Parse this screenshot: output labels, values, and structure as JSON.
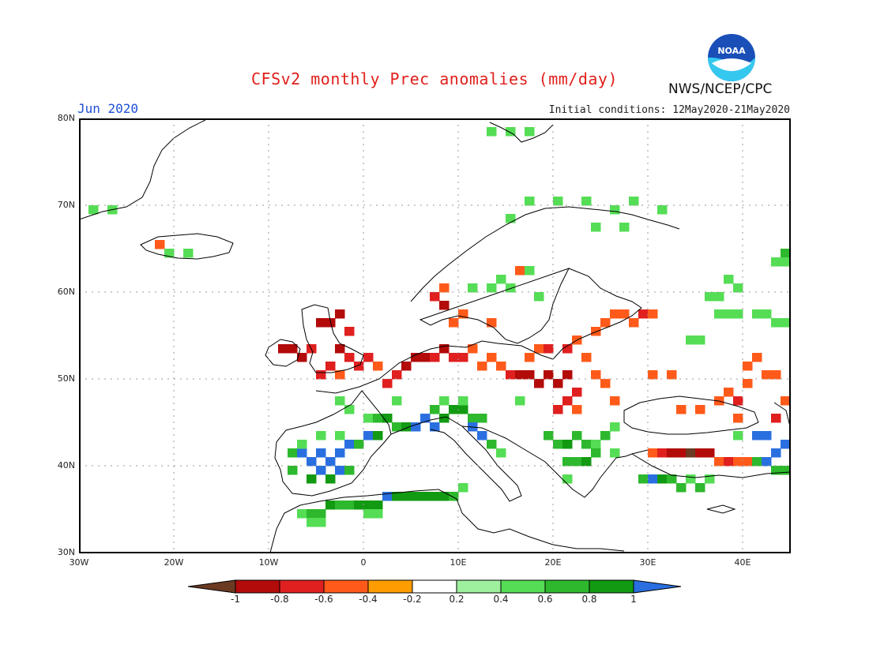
{
  "header": {
    "title": "CFSv2 monthly Prec anomalies (mm/day)",
    "period": "Jun 2020",
    "init": "Initial conditions: 12May2020-21May2020",
    "agency": "NWS/NCEP/CPC",
    "logo_text": "NOAA"
  },
  "axes": {
    "lat_labels": [
      "80N",
      "70N",
      "60N",
      "50N",
      "40N",
      "30N"
    ],
    "lon_labels": [
      "30W",
      "20W",
      "10W",
      "0",
      "10E",
      "20E",
      "30E",
      "40E"
    ],
    "lon_range": [
      -30,
      45
    ],
    "lat_range": [
      30,
      80
    ],
    "grid": "dotted"
  },
  "colorbar": {
    "labels": [
      "-1",
      "-0.8",
      "-0.6",
      "-0.4",
      "-0.2",
      "0.2",
      "0.4",
      "0.6",
      "0.8",
      "1"
    ],
    "colors": [
      "#6b3a22",
      "#b30a0a",
      "#e01f1f",
      "#ff5a1a",
      "#ff9d00",
      "#ffffff",
      "#9ef09e",
      "#55dd55",
      "#2db82d",
      "#129a12",
      "#2a6fe0"
    ]
  },
  "map": {
    "cell_deg": 1,
    "anomaly_cells": [
      {
        "lon": -9,
        "lat": 53,
        "v": -0.8
      },
      {
        "lon": -8,
        "lat": 53,
        "v": -0.8
      },
      {
        "lon": -7,
        "lat": 52,
        "v": -0.8
      },
      {
        "lon": -6,
        "lat": 53,
        "v": -0.6
      },
      {
        "lon": -5,
        "lat": 56,
        "v": -0.8
      },
      {
        "lon": -4,
        "lat": 56,
        "v": -0.8
      },
      {
        "lon": -3,
        "lat": 57,
        "v": -0.8
      },
      {
        "lon": -2,
        "lat": 55,
        "v": -0.6
      },
      {
        "lon": -3,
        "lat": 53,
        "v": -0.8
      },
      {
        "lon": -2,
        "lat": 52,
        "v": -0.6
      },
      {
        "lon": -1,
        "lat": 51,
        "v": -0.6
      },
      {
        "lon": 0,
        "lat": 52,
        "v": -0.6
      },
      {
        "lon": -4,
        "lat": 51,
        "v": -0.6
      },
      {
        "lon": -5,
        "lat": 50,
        "v": -0.6
      },
      {
        "lon": -3,
        "lat": 50,
        "v": -0.4
      },
      {
        "lon": 1,
        "lat": 51,
        "v": -0.4
      },
      {
        "lon": 2,
        "lat": 49,
        "v": -0.6
      },
      {
        "lon": 3,
        "lat": 50,
        "v": -0.6
      },
      {
        "lon": 4,
        "lat": 51,
        "v": -0.8
      },
      {
        "lon": 5,
        "lat": 52,
        "v": -0.8
      },
      {
        "lon": 6,
        "lat": 52,
        "v": -0.8
      },
      {
        "lon": 7,
        "lat": 52,
        "v": -0.6
      },
      {
        "lon": 8,
        "lat": 53,
        "v": -0.8
      },
      {
        "lon": 9,
        "lat": 52,
        "v": -0.6
      },
      {
        "lon": 10,
        "lat": 52,
        "v": -0.6
      },
      {
        "lon": 11,
        "lat": 53,
        "v": -0.4
      },
      {
        "lon": 12,
        "lat": 51,
        "v": -0.4
      },
      {
        "lon": 13,
        "lat": 52,
        "v": -0.4
      },
      {
        "lon": 14,
        "lat": 51,
        "v": -0.4
      },
      {
        "lon": 15,
        "lat": 50,
        "v": -0.6
      },
      {
        "lon": 16,
        "lat": 50,
        "v": -0.8
      },
      {
        "lon": 17,
        "lat": 50,
        "v": -0.8
      },
      {
        "lon": 18,
        "lat": 49,
        "v": -0.8
      },
      {
        "lon": 19,
        "lat": 50,
        "v": -0.8
      },
      {
        "lon": 20,
        "lat": 49,
        "v": -0.8
      },
      {
        "lon": 21,
        "lat": 50,
        "v": -0.8
      },
      {
        "lon": 22,
        "lat": 48,
        "v": -0.6
      },
      {
        "lon": 21,
        "lat": 47,
        "v": -0.6
      },
      {
        "lon": 20,
        "lat": 46,
        "v": -0.6
      },
      {
        "lon": 22,
        "lat": 46,
        "v": -0.4
      },
      {
        "lon": 17,
        "lat": 52,
        "v": -0.4
      },
      {
        "lon": 18,
        "lat": 53,
        "v": -0.4
      },
      {
        "lon": 19,
        "lat": 53,
        "v": -0.6
      },
      {
        "lon": 21,
        "lat": 53,
        "v": -0.6
      },
      {
        "lon": 23,
        "lat": 52,
        "v": -0.4
      },
      {
        "lon": 22,
        "lat": 54,
        "v": -0.4
      },
      {
        "lon": 24,
        "lat": 55,
        "v": -0.4
      },
      {
        "lon": 25,
        "lat": 56,
        "v": -0.4
      },
      {
        "lon": 26,
        "lat": 57,
        "v": -0.4
      },
      {
        "lon": 27,
        "lat": 57,
        "v": -0.4
      },
      {
        "lon": 28,
        "lat": 56,
        "v": -0.4
      },
      {
        "lon": 29,
        "lat": 57,
        "v": -0.6
      },
      {
        "lon": 30,
        "lat": 57,
        "v": -0.4
      },
      {
        "lon": 24,
        "lat": 50,
        "v": -0.4
      },
      {
        "lon": 25,
        "lat": 49,
        "v": -0.4
      },
      {
        "lon": 26,
        "lat": 47,
        "v": -0.4
      },
      {
        "lon": 30,
        "lat": 50,
        "v": -0.4
      },
      {
        "lon": 32,
        "lat": 50,
        "v": -0.4
      },
      {
        "lon": 33,
        "lat": 46,
        "v": -0.4
      },
      {
        "lon": 35,
        "lat": 46,
        "v": -0.4
      },
      {
        "lon": 37,
        "lat": 47,
        "v": -0.4
      },
      {
        "lon": 38,
        "lat": 48,
        "v": -0.4
      },
      {
        "lon": 39,
        "lat": 47,
        "v": -0.6
      },
      {
        "lon": 40,
        "lat": 49,
        "v": -0.4
      },
      {
        "lon": 40,
        "lat": 51,
        "v": -0.4
      },
      {
        "lon": 41,
        "lat": 52,
        "v": -0.4
      },
      {
        "lon": 42,
        "lat": 50,
        "v": -0.4
      },
      {
        "lon": 43,
        "lat": 50,
        "v": -0.4
      },
      {
        "lon": 44,
        "lat": 47,
        "v": -0.4
      },
      {
        "lon": 43,
        "lat": 45,
        "v": -0.6
      },
      {
        "lon": 39,
        "lat": 45,
        "v": -0.4
      },
      {
        "lon": 30,
        "lat": 41,
        "v": -0.4
      },
      {
        "lon": 31,
        "lat": 41,
        "v": -0.6
      },
      {
        "lon": 32,
        "lat": 41,
        "v": -0.8
      },
      {
        "lon": 33,
        "lat": 41,
        "v": -0.8
      },
      {
        "lon": 34,
        "lat": 41,
        "v": -1.0
      },
      {
        "lon": 35,
        "lat": 41,
        "v": -0.8
      },
      {
        "lon": 36,
        "lat": 41,
        "v": -0.8
      },
      {
        "lon": 37,
        "lat": 40,
        "v": -0.4
      },
      {
        "lon": 38,
        "lat": 40,
        "v": -0.6
      },
      {
        "lon": 39,
        "lat": 40,
        "v": -0.4
      },
      {
        "lon": 40,
        "lat": 40,
        "v": -0.4
      },
      {
        "lon": 7,
        "lat": 59,
        "v": -0.6
      },
      {
        "lon": 8,
        "lat": 58,
        "v": -0.8
      },
      {
        "lon": 9,
        "lat": 56,
        "v": -0.4
      },
      {
        "lon": 10,
        "lat": 57,
        "v": -0.4
      },
      {
        "lon": 8,
        "lat": 60,
        "v": -0.4
      },
      {
        "lon": 16,
        "lat": 62,
        "v": -0.4
      },
      {
        "lon": 13,
        "lat": 56,
        "v": -0.4
      },
      {
        "lon": -22,
        "lat": 65,
        "v": -0.4
      },
      {
        "lon": -8,
        "lat": 41,
        "v": 0.6
      },
      {
        "lon": -7,
        "lat": 41,
        "v": 1.0
      },
      {
        "lon": -6,
        "lat": 40,
        "v": 1.0
      },
      {
        "lon": -5,
        "lat": 41,
        "v": 1.0
      },
      {
        "lon": -4,
        "lat": 40,
        "v": 1.0
      },
      {
        "lon": -3,
        "lat": 41,
        "v": 1.0
      },
      {
        "lon": -2,
        "lat": 42,
        "v": 1.0
      },
      {
        "lon": -5,
        "lat": 39,
        "v": 1.0
      },
      {
        "lon": -3,
        "lat": 39,
        "v": 1.0
      },
      {
        "lon": -6,
        "lat": 38,
        "v": 0.8
      },
      {
        "lon": -4,
        "lat": 38,
        "v": 0.8
      },
      {
        "lon": -2,
        "lat": 39,
        "v": 0.6
      },
      {
        "lon": -8,
        "lat": 39,
        "v": 0.6
      },
      {
        "lon": -7,
        "lat": 42,
        "v": 0.4
      },
      {
        "lon": -5,
        "lat": 43,
        "v": 0.4
      },
      {
        "lon": -3,
        "lat": 43,
        "v": 0.4
      },
      {
        "lon": -1,
        "lat": 42,
        "v": 0.6
      },
      {
        "lon": 0,
        "lat": 43,
        "v": 1.0
      },
      {
        "lon": 1,
        "lat": 43,
        "v": 0.8
      },
      {
        "lon": 0,
        "lat": 45,
        "v": 0.4
      },
      {
        "lon": 1,
        "lat": 45,
        "v": 0.6
      },
      {
        "lon": 2,
        "lat": 45,
        "v": 0.8
      },
      {
        "lon": 3,
        "lat": 44,
        "v": 0.6
      },
      {
        "lon": 4,
        "lat": 44,
        "v": 0.8
      },
      {
        "lon": 5,
        "lat": 44,
        "v": 1.0
      },
      {
        "lon": 6,
        "lat": 45,
        "v": 1.0
      },
      {
        "lon": 7,
        "lat": 44,
        "v": 1.0
      },
      {
        "lon": 8,
        "lat": 45,
        "v": 0.8
      },
      {
        "lon": 9,
        "lat": 46,
        "v": 0.8
      },
      {
        "lon": 10,
        "lat": 46,
        "v": 0.8
      },
      {
        "lon": 11,
        "lat": 45,
        "v": 0.6
      },
      {
        "lon": 12,
        "lat": 45,
        "v": 0.6
      },
      {
        "lon": 7,
        "lat": 46,
        "v": 0.6
      },
      {
        "lon": 8,
        "lat": 47,
        "v": 0.4
      },
      {
        "lon": 11,
        "lat": 44,
        "v": 1.0
      },
      {
        "lon": 12,
        "lat": 43,
        "v": 1.0
      },
      {
        "lon": 13,
        "lat": 42,
        "v": 0.6
      },
      {
        "lon": 14,
        "lat": 41,
        "v": 0.4
      },
      {
        "lon": 3,
        "lat": 47,
        "v": 0.4
      },
      {
        "lon": -2,
        "lat": 46,
        "v": 0.4
      },
      {
        "lon": -3,
        "lat": 47,
        "v": 0.4
      },
      {
        "lon": -7,
        "lat": 34,
        "v": 0.4
      },
      {
        "lon": -6,
        "lat": 34,
        "v": 0.6
      },
      {
        "lon": -5,
        "lat": 34,
        "v": 0.6
      },
      {
        "lon": -4,
        "lat": 35,
        "v": 0.8
      },
      {
        "lon": -3,
        "lat": 35,
        "v": 0.6
      },
      {
        "lon": -2,
        "lat": 35,
        "v": 0.6
      },
      {
        "lon": -1,
        "lat": 35,
        "v": 0.8
      },
      {
        "lon": 0,
        "lat": 35,
        "v": 0.8
      },
      {
        "lon": 1,
        "lat": 35,
        "v": 0.8
      },
      {
        "lon": 2,
        "lat": 36,
        "v": 1.0
      },
      {
        "lon": 3,
        "lat": 36,
        "v": 0.8
      },
      {
        "lon": 4,
        "lat": 36,
        "v": 0.8
      },
      {
        "lon": 5,
        "lat": 36,
        "v": 0.8
      },
      {
        "lon": 6,
        "lat": 36,
        "v": 0.8
      },
      {
        "lon": 7,
        "lat": 36,
        "v": 0.8
      },
      {
        "lon": 8,
        "lat": 36,
        "v": 0.8
      },
      {
        "lon": 9,
        "lat": 36,
        "v": 0.6
      },
      {
        "lon": 10,
        "lat": 37,
        "v": 0.4
      },
      {
        "lon": 0,
        "lat": 34,
        "v": 0.4
      },
      {
        "lon": 1,
        "lat": 34,
        "v": 0.4
      },
      {
        "lon": -6,
        "lat": 33,
        "v": 0.4
      },
      {
        "lon": -5,
        "lat": 33,
        "v": 0.4
      },
      {
        "lon": 19,
        "lat": 43,
        "v": 0.6
      },
      {
        "lon": 20,
        "lat": 42,
        "v": 0.6
      },
      {
        "lon": 21,
        "lat": 42,
        "v": 0.8
      },
      {
        "lon": 22,
        "lat": 43,
        "v": 0.6
      },
      {
        "lon": 23,
        "lat": 42,
        "v": 0.6
      },
      {
        "lon": 24,
        "lat": 42,
        "v": 0.4
      },
      {
        "lon": 25,
        "lat": 43,
        "v": 0.6
      },
      {
        "lon": 21,
        "lat": 40,
        "v": 0.6
      },
      {
        "lon": 22,
        "lat": 40,
        "v": 0.6
      },
      {
        "lon": 23,
        "lat": 40,
        "v": 0.8
      },
      {
        "lon": 24,
        "lat": 41,
        "v": 0.6
      },
      {
        "lon": 26,
        "lat": 44,
        "v": 0.4
      },
      {
        "lon": 29,
        "lat": 38,
        "v": 0.6
      },
      {
        "lon": 30,
        "lat": 38,
        "v": 1.0
      },
      {
        "lon": 31,
        "lat": 38,
        "v": 0.8
      },
      {
        "lon": 32,
        "lat": 38,
        "v": 0.6
      },
      {
        "lon": 33,
        "lat": 37,
        "v": 0.6
      },
      {
        "lon": 34,
        "lat": 38,
        "v": 0.4
      },
      {
        "lon": 35,
        "lat": 37,
        "v": 0.6
      },
      {
        "lon": 36,
        "lat": 38,
        "v": 0.4
      },
      {
        "lon": 41,
        "lat": 43,
        "v": 1.0
      },
      {
        "lon": 42,
        "lat": 43,
        "v": 1.0
      },
      {
        "lon": 43,
        "lat": 41,
        "v": 1.0
      },
      {
        "lon": 44,
        "lat": 42,
        "v": 1.0
      },
      {
        "lon": 41,
        "lat": 40,
        "v": 0.6
      },
      {
        "lon": 42,
        "lat": 40,
        "v": 1.0
      },
      {
        "lon": 43,
        "lat": 39,
        "v": 0.6
      },
      {
        "lon": 44,
        "lat": 39,
        "v": 0.6
      },
      {
        "lon": 39,
        "lat": 43,
        "v": 0.4
      },
      {
        "lon": 15,
        "lat": 68,
        "v": 0.4
      },
      {
        "lon": 17,
        "lat": 70,
        "v": 0.4
      },
      {
        "lon": 20,
        "lat": 70,
        "v": 0.4
      },
      {
        "lon": 23,
        "lat": 70,
        "v": 0.4
      },
      {
        "lon": 26,
        "lat": 69,
        "v": 0.4
      },
      {
        "lon": 28,
        "lat": 70,
        "v": 0.4
      },
      {
        "lon": 31,
        "lat": 69,
        "v": 0.4
      },
      {
        "lon": 24,
        "lat": 67,
        "v": 0.4
      },
      {
        "lon": 27,
        "lat": 67,
        "v": 0.4
      },
      {
        "lon": 14,
        "lat": 61,
        "v": 0.4
      },
      {
        "lon": 11,
        "lat": 60,
        "v": 0.4
      },
      {
        "lon": 13,
        "lat": 60,
        "v": 0.4
      },
      {
        "lon": 15,
        "lat": 60,
        "v": 0.4
      },
      {
        "lon": 17,
        "lat": 62,
        "v": 0.4
      },
      {
        "lon": 18,
        "lat": 59,
        "v": 0.4
      },
      {
        "lon": 36,
        "lat": 59,
        "v": 0.4
      },
      {
        "lon": 37,
        "lat": 59,
        "v": 0.4
      },
      {
        "lon": 38,
        "lat": 61,
        "v": 0.4
      },
      {
        "lon": 39,
        "lat": 60,
        "v": 0.4
      },
      {
        "lon": 37,
        "lat": 57,
        "v": 0.4
      },
      {
        "lon": 38,
        "lat": 57,
        "v": 0.4
      },
      {
        "lon": 39,
        "lat": 57,
        "v": 0.4
      },
      {
        "lon": 41,
        "lat": 57,
        "v": 0.4
      },
      {
        "lon": 42,
        "lat": 57,
        "v": 0.4
      },
      {
        "lon": 43,
        "lat": 56,
        "v": 0.4
      },
      {
        "lon": 44,
        "lat": 56,
        "v": 0.4
      },
      {
        "lon": 35,
        "lat": 54,
        "v": 0.4
      },
      {
        "lon": 34,
        "lat": 54,
        "v": 0.4
      },
      {
        "lon": 43,
        "lat": 63,
        "v": 0.4
      },
      {
        "lon": 44,
        "lat": 64,
        "v": 0.6
      },
      {
        "lon": 44,
        "lat": 63,
        "v": 0.4
      },
      {
        "lon": -29,
        "lat": 69,
        "v": 0.4
      },
      {
        "lon": -27,
        "lat": 69,
        "v": 0.4
      },
      {
        "lon": -21,
        "lat": 64,
        "v": 0.4
      },
      {
        "lon": -19,
        "lat": 64,
        "v": 0.4
      },
      {
        "lon": 13,
        "lat": 78,
        "v": 0.4
      },
      {
        "lon": 15,
        "lat": 78,
        "v": 0.4
      },
      {
        "lon": 17,
        "lat": 78,
        "v": 0.4
      },
      {
        "lon": 16,
        "lat": 47,
        "v": 0.4
      },
      {
        "lon": 10,
        "lat": 47,
        "v": 0.4
      },
      {
        "lon": 26,
        "lat": 41,
        "v": 0.4
      },
      {
        "lon": 21,
        "lat": 38,
        "v": 0.4
      }
    ]
  }
}
